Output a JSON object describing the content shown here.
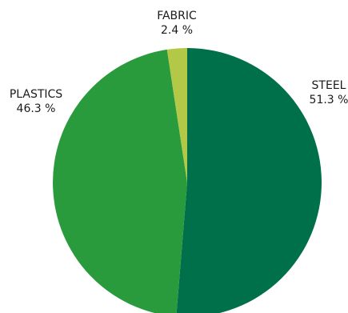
{
  "chart_data": {
    "type": "pie",
    "slices": [
      {
        "label": "STEEL",
        "value": 51.3,
        "value_text": "51.3 %",
        "color": "#00704a"
      },
      {
        "label": "PLASTICS",
        "value": 46.3,
        "value_text": "46.3 %",
        "color": "#2a9b3c"
      },
      {
        "label": "FABRIC",
        "value": 2.4,
        "value_text": "2.4 %",
        "color": "#b3c846"
      }
    ],
    "start": "12 o'clock",
    "direction": "clockwise",
    "legend": "none"
  }
}
